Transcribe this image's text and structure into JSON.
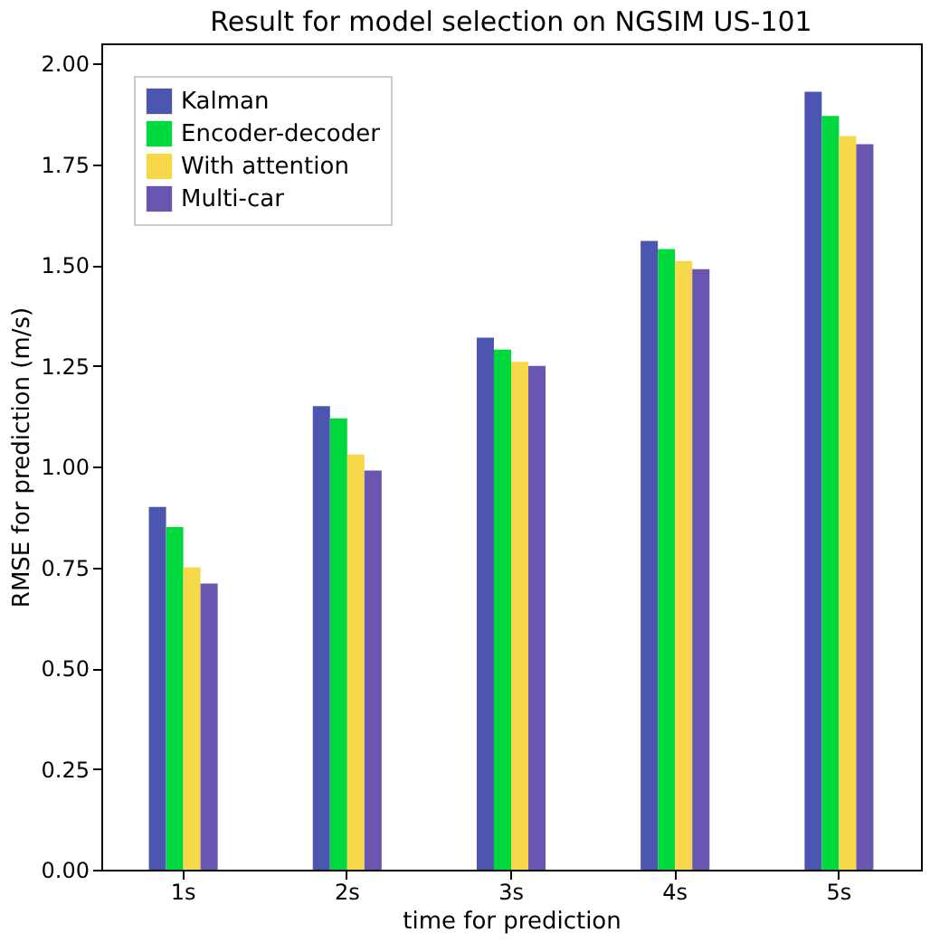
{
  "chart_data": {
    "type": "bar",
    "title": "Result for model selection on NGSIM US-101",
    "xlabel": "time for prediction",
    "ylabel": "RMSE for prediction (m/s)",
    "categories": [
      "1s",
      "2s",
      "3s",
      "4s",
      "5s"
    ],
    "series": [
      {
        "name": "Kalman",
        "color": "#4c56b0",
        "values": [
          0.9,
          1.15,
          1.32,
          1.56,
          1.93
        ]
      },
      {
        "name": "Encoder-decoder",
        "color": "#00d93e",
        "values": [
          0.85,
          1.12,
          1.29,
          1.54,
          1.87
        ]
      },
      {
        "name": "With attention",
        "color": "#f7d84a",
        "values": [
          0.75,
          1.03,
          1.26,
          1.51,
          1.82
        ]
      },
      {
        "name": "Multi-car",
        "color": "#6a55b0",
        "values": [
          0.71,
          0.99,
          1.25,
          1.49,
          1.8
        ]
      }
    ],
    "ylim": [
      0,
      2.05
    ],
    "yticks": [
      {
        "value": 0,
        "label": "0.00"
      },
      {
        "value": 0.25,
        "label": "0.25"
      },
      {
        "value": 0.5,
        "label": "0.50"
      },
      {
        "value": 0.75,
        "label": "0.75"
      },
      {
        "value": 1,
        "label": "1.00"
      },
      {
        "value": 1.25,
        "label": "1.25"
      },
      {
        "value": 1.5,
        "label": "1.50"
      },
      {
        "value": 1.75,
        "label": "1.75"
      },
      {
        "value": 2,
        "label": "2.00"
      }
    ],
    "grid": false,
    "legend": "top left"
  }
}
